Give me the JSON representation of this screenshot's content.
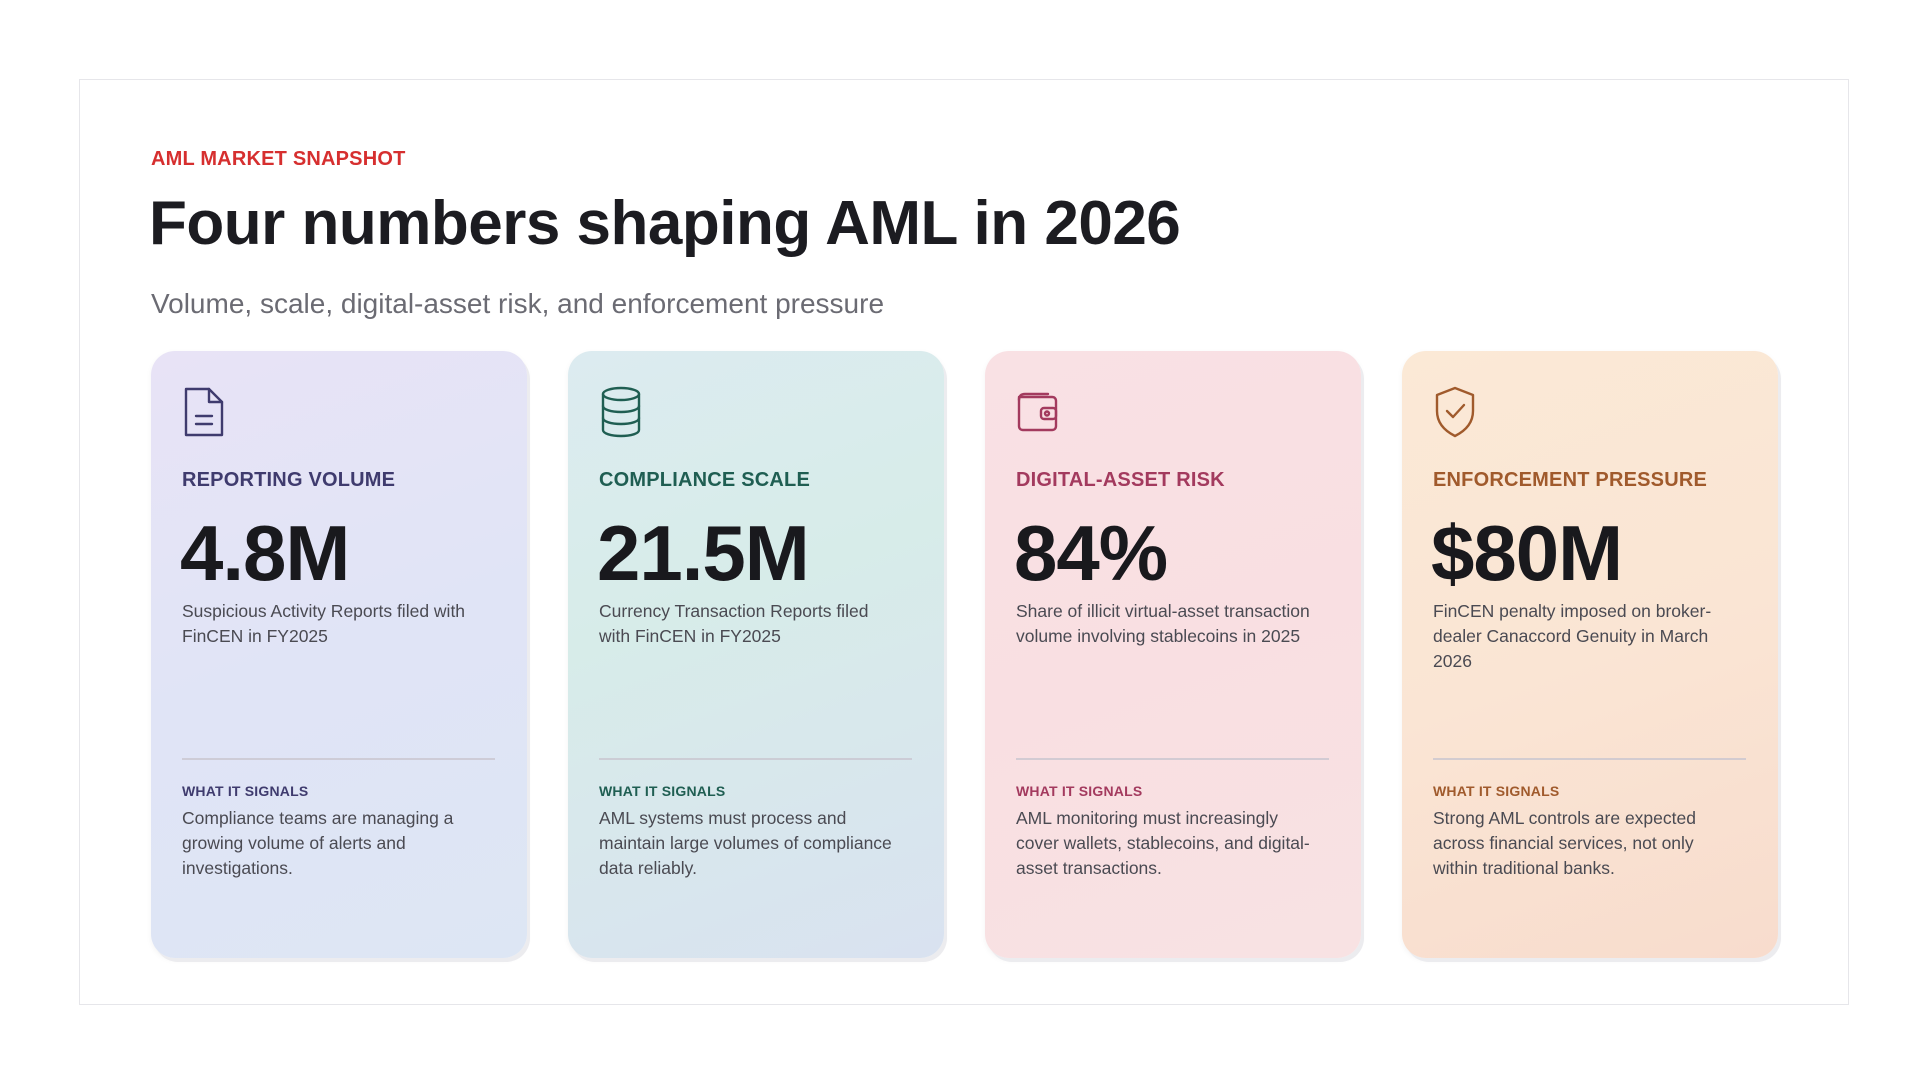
{
  "header": {
    "eyebrow": "AML MARKET SNAPSHOT",
    "title": "Four numbers shaping AML in 2026",
    "subtitle": "Volume, scale, digital-asset risk, and enforcement pressure"
  },
  "colors": {
    "accent": "#d62f2f",
    "card1": "#3f3b6e",
    "card2": "#1f5e52",
    "card3": "#a33a5e",
    "card4": "#a05a2c"
  },
  "cards": [
    {
      "icon": "document-icon",
      "label": "REPORTING VOLUME",
      "value": "4.8M",
      "description": "Suspicious Activity Reports filed with FinCEN in FY2025",
      "signal_label": "WHAT IT SIGNALS",
      "signal_text": "Compliance teams are managing a growing volume of alerts and investigations."
    },
    {
      "icon": "database-icon",
      "label": "COMPLIANCE SCALE",
      "value": "21.5M",
      "description": "Currency Transaction Reports filed with FinCEN in FY2025",
      "signal_label": "WHAT IT SIGNALS",
      "signal_text": "AML systems must process and maintain large volumes of compliance data reliably."
    },
    {
      "icon": "wallet-icon",
      "label": "DIGITAL-ASSET RISK",
      "value": "84%",
      "description": "Share of illicit virtual-asset transaction volume involving stablecoins in 2025",
      "signal_label": "WHAT IT SIGNALS",
      "signal_text": "AML monitoring must increasingly cover wallets, stablecoins, and digital-asset transactions."
    },
    {
      "icon": "shield-check-icon",
      "label": "ENFORCEMENT PRESSURE",
      "value": "$80M",
      "description": "FinCEN penalty imposed on broker-dealer Canaccord Genuity in March 2026",
      "signal_label": "WHAT IT SIGNALS",
      "signal_text": "Strong AML controls are expected across financial services, not only within traditional banks."
    }
  ]
}
